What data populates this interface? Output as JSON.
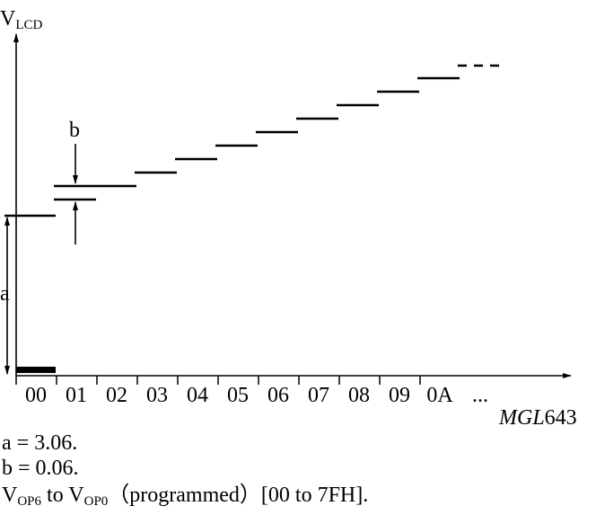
{
  "axis": {
    "y_label": {
      "main": "V",
      "sub": "LCD"
    },
    "x_labels": [
      "00",
      "01",
      "02",
      "03",
      "04",
      "05",
      "06",
      "07",
      "08",
      "09",
      "0A",
      "..."
    ],
    "figure_id": {
      "italic": "MGL",
      "plain": "643"
    }
  },
  "annotations": {
    "b": "b",
    "a": "a"
  },
  "notes": {
    "a": "a = 3.06.",
    "b": "b = 0.06.",
    "range": {
      "v1": "V",
      "v1_sub": "OP6",
      "to": " to ",
      "v2": "V",
      "v2_sub": "OP0",
      "rest": "（programmed）[00 to 7FH]."
    }
  }
}
